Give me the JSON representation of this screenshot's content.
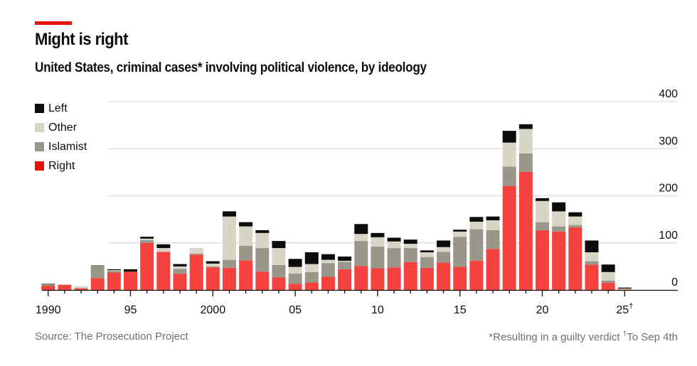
{
  "header": {
    "title": "Might is right",
    "subtitle": "United States, criminal cases* involving political violence, by ideology"
  },
  "footer": {
    "source": "Source: The Prosecution Project",
    "note_a": "*Resulting in a guilty verdict ",
    "note_dagger": "†",
    "note_b": "To Sep 4th"
  },
  "chart_data": {
    "type": "bar",
    "stacked": true,
    "title": "Might is right",
    "subtitle": "United States, criminal cases* involving political violence, by ideology",
    "xlabel": "",
    "ylabel": "",
    "ylim": [
      0,
      400
    ],
    "yticks": [
      0,
      100,
      200,
      300,
      400
    ],
    "y_axis_side": "right",
    "grid": true,
    "legend_position": "top-left",
    "x_tick_labels": [
      {
        "year": 1990,
        "label": "1990"
      },
      {
        "year": 1995,
        "label": "95"
      },
      {
        "year": 2000,
        "label": "2000"
      },
      {
        "year": 2005,
        "label": "05"
      },
      {
        "year": 2010,
        "label": "10"
      },
      {
        "year": 2015,
        "label": "15"
      },
      {
        "year": 2020,
        "label": "20"
      },
      {
        "year": 2025,
        "label": "25",
        "superscript": "†"
      }
    ],
    "categories": [
      1990,
      1991,
      1992,
      1993,
      1994,
      1995,
      1996,
      1997,
      1998,
      1999,
      2000,
      2001,
      2002,
      2003,
      2004,
      2005,
      2006,
      2007,
      2008,
      2009,
      2010,
      2011,
      2012,
      2013,
      2014,
      2015,
      2016,
      2017,
      2018,
      2019,
      2020,
      2021,
      2022,
      2023,
      2024,
      2025
    ],
    "series": [
      {
        "name": "Right",
        "color": "#f5423f",
        "values": [
          9,
          11,
          3,
          25,
          37,
          39,
          100,
          81,
          34,
          75,
          48,
          47,
          63,
          39,
          27,
          13,
          16,
          28,
          44,
          51,
          46,
          48,
          59,
          47,
          58,
          49,
          62,
          87,
          221,
          251,
          127,
          124,
          133,
          54,
          15,
          1
        ]
      },
      {
        "name": "Islamist",
        "color": "#98978a",
        "values": [
          3,
          0,
          1,
          26,
          3,
          0,
          6,
          0,
          11,
          2,
          2,
          17,
          31,
          50,
          26,
          22,
          22,
          29,
          16,
          53,
          46,
          41,
          30,
          23,
          23,
          64,
          67,
          40,
          41,
          39,
          17,
          11,
          5,
          7,
          5,
          0
        ]
      },
      {
        "name": "Other",
        "color": "#d8d5c4",
        "values": [
          0,
          1,
          4,
          0,
          2,
          0,
          3,
          8,
          5,
          12,
          6,
          92,
          41,
          32,
          36,
          14,
          17,
          7,
          2,
          15,
          20,
          14,
          9,
          10,
          10,
          11,
          16,
          21,
          51,
          52,
          45,
          32,
          18,
          19,
          18,
          2
        ]
      },
      {
        "name": "Left",
        "color": "#0c0c0c",
        "values": [
          1,
          0,
          0,
          1,
          2,
          5,
          4,
          8,
          5,
          0,
          5,
          11,
          9,
          6,
          15,
          17,
          25,
          12,
          9,
          21,
          9,
          8,
          9,
          4,
          14,
          4,
          10,
          8,
          25,
          10,
          6,
          19,
          9,
          25,
          16,
          2
        ]
      }
    ],
    "legend_order": [
      "Left",
      "Other",
      "Islamist",
      "Right"
    ]
  }
}
